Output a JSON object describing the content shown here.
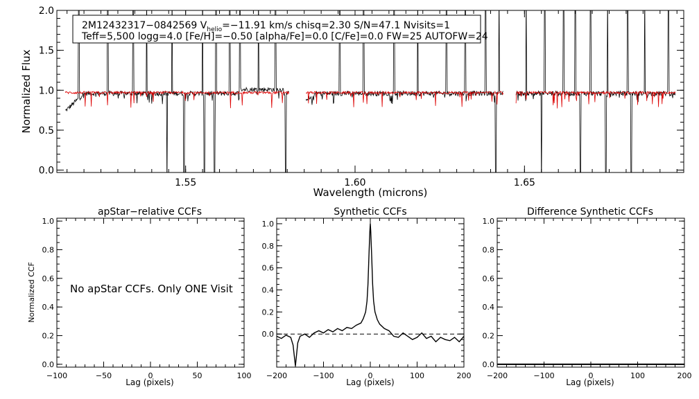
{
  "chart_data": [
    {
      "type": "line",
      "xlabel": "Wavelength (microns)",
      "ylabel": "Normalized Flux",
      "xlim": [
        1.512,
        1.697
      ],
      "ylim": [
        -0.03,
        2.0
      ],
      "xticks": [
        "1.55",
        "1.60",
        "1.65"
      ],
      "yticks": [
        "0.0",
        "0.5",
        "1.0",
        "1.5",
        "2.0"
      ],
      "chip_gaps": [
        [
          1.5805,
          1.5855
        ],
        [
          1.6437,
          1.6475
        ]
      ],
      "series": [
        {
          "color": "#000000",
          "baseline": 0.96,
          "noise": 0.03
        },
        {
          "color": "#dd0000",
          "baseline": 0.97,
          "noise": 0.015
        }
      ],
      "spikes_up": [
        1.5185,
        1.527,
        1.5345,
        1.5385,
        1.546,
        1.5495,
        1.555,
        1.559,
        1.563,
        1.566,
        1.5715,
        1.5765,
        1.5955,
        1.6025,
        1.6115,
        1.6185,
        1.627,
        1.6325,
        1.6385,
        1.6425,
        1.6505,
        1.656,
        1.6615,
        1.665,
        1.6695,
        1.6745,
        1.6805,
        1.6855,
        1.6925
      ],
      "spikes_down": [
        1.5445,
        1.5495,
        1.5555,
        1.5585,
        1.5795,
        1.6415,
        1.655,
        1.6665,
        1.674,
        1.6815
      ],
      "annotation": {
        "line1": {
          "pre": "2M12432317−0842569  V",
          "sub": "helio",
          "post": "=−11.91 km/s  chisq=2.30  S/N=47.1  Nvisits=1"
        },
        "line2": "Teff=5,500 logg=4.0 [Fe/H]=−0.50 [alpha/Fe]=0.0 [C/Fe]=0.0 FW=25 AUTOFW=24"
      }
    },
    {
      "type": "line",
      "title": "apStar−relative CCFs",
      "xlabel": "Lag (pixels)",
      "ylabel": "Normalized CCF",
      "xlim": [
        -100,
        100
      ],
      "ylim": [
        -0.02,
        1.02
      ],
      "xticks": [
        "−100",
        "−50",
        "0",
        "50",
        "100"
      ],
      "yticks": [
        "0.0",
        "0.2",
        "0.4",
        "0.6",
        "0.8",
        "1.0"
      ],
      "message": "No apStar CCFs.  Only ONE Visit"
    },
    {
      "type": "line",
      "title": "Synthetic CCFs",
      "xlabel": "Lag (pixels)",
      "xlim": [
        -200,
        200
      ],
      "ylim": [
        -0.3,
        1.05
      ],
      "xticks": [
        "−200",
        "−100",
        "0",
        "100",
        "200"
      ],
      "yticks": [
        "0.0",
        "0.2",
        "0.4",
        "0.6",
        "0.8",
        "1.0"
      ],
      "reference_line_y": 0.0,
      "x": [
        -200,
        -190,
        -180,
        -170,
        -165,
        -160,
        -155,
        -150,
        -140,
        -130,
        -120,
        -110,
        -100,
        -90,
        -80,
        -70,
        -60,
        -50,
        -40,
        -30,
        -20,
        -15,
        -10,
        -7,
        -5,
        -3,
        -1,
        0,
        1,
        3,
        5,
        7,
        10,
        15,
        20,
        30,
        40,
        50,
        60,
        70,
        80,
        90,
        100,
        110,
        120,
        130,
        140,
        150,
        160,
        170,
        180,
        190,
        200
      ],
      "y": [
        -0.02,
        -0.04,
        -0.01,
        -0.03,
        -0.1,
        -0.29,
        -0.08,
        -0.02,
        0.0,
        -0.03,
        0.01,
        0.03,
        0.01,
        0.04,
        0.02,
        0.05,
        0.03,
        0.06,
        0.05,
        0.08,
        0.1,
        0.14,
        0.2,
        0.3,
        0.45,
        0.7,
        0.93,
        1.0,
        0.93,
        0.7,
        0.45,
        0.3,
        0.2,
        0.13,
        0.09,
        0.05,
        0.03,
        -0.02,
        -0.03,
        0.01,
        -0.02,
        -0.05,
        -0.03,
        0.01,
        -0.04,
        -0.02,
        -0.07,
        -0.03,
        -0.05,
        -0.06,
        -0.03,
        -0.07,
        -0.02
      ]
    },
    {
      "type": "line",
      "title": "Difference Synthetic CCFs",
      "xlabel": "Lag (pixels)",
      "xlim": [
        -200,
        200
      ],
      "ylim": [
        -0.02,
        1.02
      ],
      "xticks": [
        "−200",
        "−100",
        "0",
        "100",
        "200"
      ],
      "yticks": [
        "0.0",
        "0.2",
        "0.4",
        "0.6",
        "0.8",
        "1.0"
      ],
      "x": [
        -200,
        200
      ],
      "y": [
        0.0,
        0.0
      ]
    }
  ]
}
